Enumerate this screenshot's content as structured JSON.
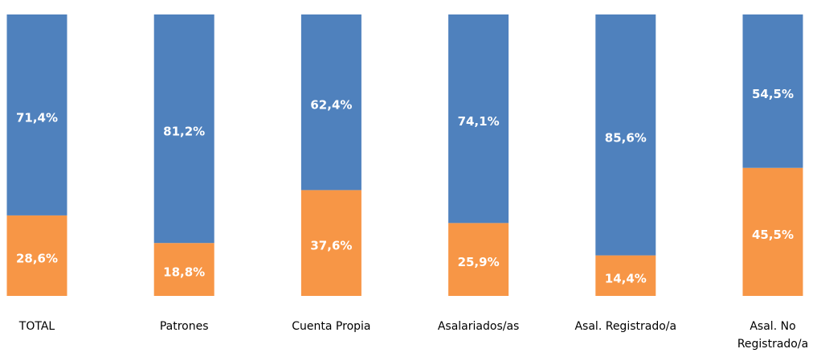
{
  "chart_data": {
    "type": "stacked_bar",
    "categories": [
      "TOTAL",
      "Patrones",
      "Cuenta Propia",
      "Asalariados/as",
      "Asal. Registrado/a",
      "Asal. No Registrado/a"
    ],
    "series": [
      {
        "color": "#f79646",
        "values": [
          28.6,
          18.8,
          37.6,
          25.9,
          14.4,
          45.5
        ],
        "value_labels": [
          "28,6%",
          "18,8%",
          "37,6%",
          "25,9%",
          "14,4%",
          "45,5%"
        ]
      },
      {
        "color": "#4f81bd",
        "values": [
          71.4,
          81.2,
          62.4,
          74.1,
          85.6,
          54.5
        ],
        "value_labels": [
          "71,4%",
          "81,2%",
          "62,4%",
          "74,1%",
          "85,6%",
          "54,5%"
        ]
      }
    ],
    "ylim": [
      0,
      100
    ]
  }
}
